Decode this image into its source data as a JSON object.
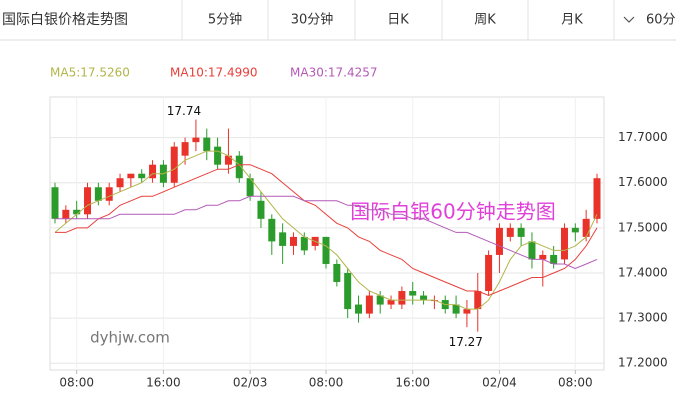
{
  "tabs": [
    "国际白银价格走势图",
    "5分钟",
    "30分钟",
    "日K",
    "周K",
    "月K",
    "60分"
  ],
  "chart_data": {
    "type": "candlestick",
    "watermark": "国际白银60分钟走势图",
    "site": "dyhjw.com",
    "up_color": "#e8322a",
    "down_color": "#2b9b2b",
    "categories": [
      null,
      null,
      "08:00",
      null,
      null,
      null,
      null,
      null,
      null,
      null,
      "16:00",
      null,
      null,
      null,
      null,
      null,
      null,
      null,
      "02/03",
      null,
      null,
      null,
      null,
      null,
      null,
      "08:00",
      null,
      null,
      null,
      null,
      null,
      null,
      null,
      "16:00",
      null,
      null,
      null,
      null,
      null,
      null,
      null,
      "02/04",
      null,
      null,
      null,
      null,
      null,
      null,
      "08:00",
      null,
      null
    ],
    "open": [
      17.59,
      17.52,
      17.54,
      17.53,
      17.59,
      17.56,
      17.59,
      17.61,
      17.62,
      17.61,
      17.64,
      17.6,
      17.66,
      17.69,
      17.7,
      17.68,
      17.64,
      17.66,
      17.61,
      17.56,
      17.52,
      17.49,
      17.46,
      17.48,
      17.46,
      17.48,
      17.42,
      17.4,
      17.33,
      17.31,
      17.35,
      17.33,
      17.33,
      17.36,
      17.35,
      17.34,
      17.34,
      17.33,
      17.31,
      17.32,
      17.36,
      17.44,
      17.48,
      17.5,
      17.47,
      17.43,
      17.44,
      17.43,
      17.5,
      17.48,
      17.52
    ],
    "high": [
      17.6,
      17.55,
      17.56,
      17.6,
      17.6,
      17.6,
      17.62,
      17.62,
      17.63,
      17.65,
      17.65,
      17.69,
      17.7,
      17.74,
      17.72,
      17.7,
      17.72,
      17.67,
      17.62,
      17.58,
      17.53,
      17.51,
      17.49,
      17.49,
      17.48,
      17.48,
      17.43,
      17.41,
      17.35,
      17.36,
      17.36,
      17.35,
      17.37,
      17.38,
      17.36,
      17.35,
      17.35,
      17.35,
      17.34,
      17.4,
      17.45,
      17.51,
      17.51,
      17.51,
      17.49,
      17.45,
      17.46,
      17.51,
      17.51,
      17.54,
      17.62
    ],
    "low": [
      17.51,
      17.51,
      17.52,
      17.52,
      17.55,
      17.55,
      17.58,
      17.59,
      17.6,
      17.6,
      17.59,
      17.59,
      17.64,
      17.67,
      17.65,
      17.63,
      17.62,
      17.6,
      17.56,
      17.5,
      17.44,
      17.42,
      17.44,
      17.44,
      17.45,
      17.41,
      17.37,
      17.3,
      17.29,
      17.3,
      17.31,
      17.32,
      17.32,
      17.33,
      17.33,
      17.32,
      17.31,
      17.3,
      17.28,
      17.27,
      17.35,
      17.4,
      17.47,
      17.46,
      17.41,
      17.37,
      17.41,
      17.42,
      17.47,
      17.47,
      17.51
    ],
    "close": [
      17.52,
      17.54,
      17.53,
      17.59,
      17.56,
      17.59,
      17.61,
      17.62,
      17.61,
      17.64,
      17.6,
      17.68,
      17.69,
      17.7,
      17.67,
      17.64,
      17.66,
      17.61,
      17.57,
      17.52,
      17.47,
      17.46,
      17.48,
      17.45,
      17.48,
      17.42,
      17.38,
      17.32,
      17.31,
      17.35,
      17.33,
      17.34,
      17.36,
      17.35,
      17.34,
      17.34,
      17.32,
      17.31,
      17.32,
      17.36,
      17.44,
      17.5,
      17.5,
      17.48,
      17.43,
      17.44,
      17.42,
      17.5,
      17.49,
      17.52,
      17.61
    ],
    "series": [
      {
        "name": "MA5:17.5260",
        "color": "#b3b54a",
        "values": [
          17.49,
          17.51,
          17.53,
          17.55,
          17.56,
          17.57,
          17.58,
          17.59,
          17.6,
          17.62,
          17.62,
          17.63,
          17.65,
          17.66,
          17.67,
          17.67,
          17.66,
          17.64,
          17.61,
          17.58,
          17.55,
          17.52,
          17.5,
          17.48,
          17.47,
          17.46,
          17.44,
          17.41,
          17.38,
          17.36,
          17.35,
          17.34,
          17.34,
          17.34,
          17.34,
          17.34,
          17.33,
          17.33,
          17.32,
          17.32,
          17.34,
          17.38,
          17.43,
          17.46,
          17.47,
          17.46,
          17.45,
          17.45,
          17.46,
          17.48,
          17.53
        ]
      },
      {
        "name": "MA10:17.4990",
        "color": "#e8403a",
        "values": [
          17.49,
          17.49,
          17.5,
          17.5,
          17.52,
          17.53,
          17.55,
          17.56,
          17.57,
          17.57,
          17.58,
          17.59,
          17.6,
          17.61,
          17.62,
          17.63,
          17.63,
          17.64,
          17.64,
          17.63,
          17.62,
          17.6,
          17.58,
          17.56,
          17.55,
          17.53,
          17.51,
          17.5,
          17.48,
          17.47,
          17.45,
          17.44,
          17.43,
          17.41,
          17.4,
          17.39,
          17.38,
          17.37,
          17.36,
          17.36,
          17.35,
          17.36,
          17.37,
          17.38,
          17.39,
          17.39,
          17.4,
          17.41,
          17.43,
          17.46,
          17.5
        ]
      },
      {
        "name": "MA30:17.4257",
        "color": "#b45ab8",
        "values": [
          17.52,
          17.52,
          17.52,
          17.52,
          17.52,
          17.52,
          17.53,
          17.53,
          17.53,
          17.53,
          17.53,
          17.53,
          17.54,
          17.54,
          17.55,
          17.55,
          17.56,
          17.56,
          17.57,
          17.57,
          17.57,
          17.57,
          17.57,
          17.56,
          17.56,
          17.56,
          17.56,
          17.55,
          17.55,
          17.54,
          17.54,
          17.53,
          17.53,
          17.52,
          17.52,
          17.51,
          17.5,
          17.49,
          17.49,
          17.48,
          17.47,
          17.46,
          17.45,
          17.44,
          17.43,
          17.43,
          17.42,
          17.42,
          17.41,
          17.42,
          17.43
        ]
      }
    ],
    "ylim": [
      17.185,
      17.79
    ],
    "yticks": [
      {
        "value": 17.2,
        "label": "17.2000"
      },
      {
        "value": 17.3,
        "label": "17.3000"
      },
      {
        "value": 17.4,
        "label": "17.4000"
      },
      {
        "value": 17.5,
        "label": "17.5000"
      },
      {
        "value": 17.6,
        "label": "17.6000"
      },
      {
        "value": 17.7,
        "label": "17.7000"
      }
    ],
    "grid": true
  }
}
